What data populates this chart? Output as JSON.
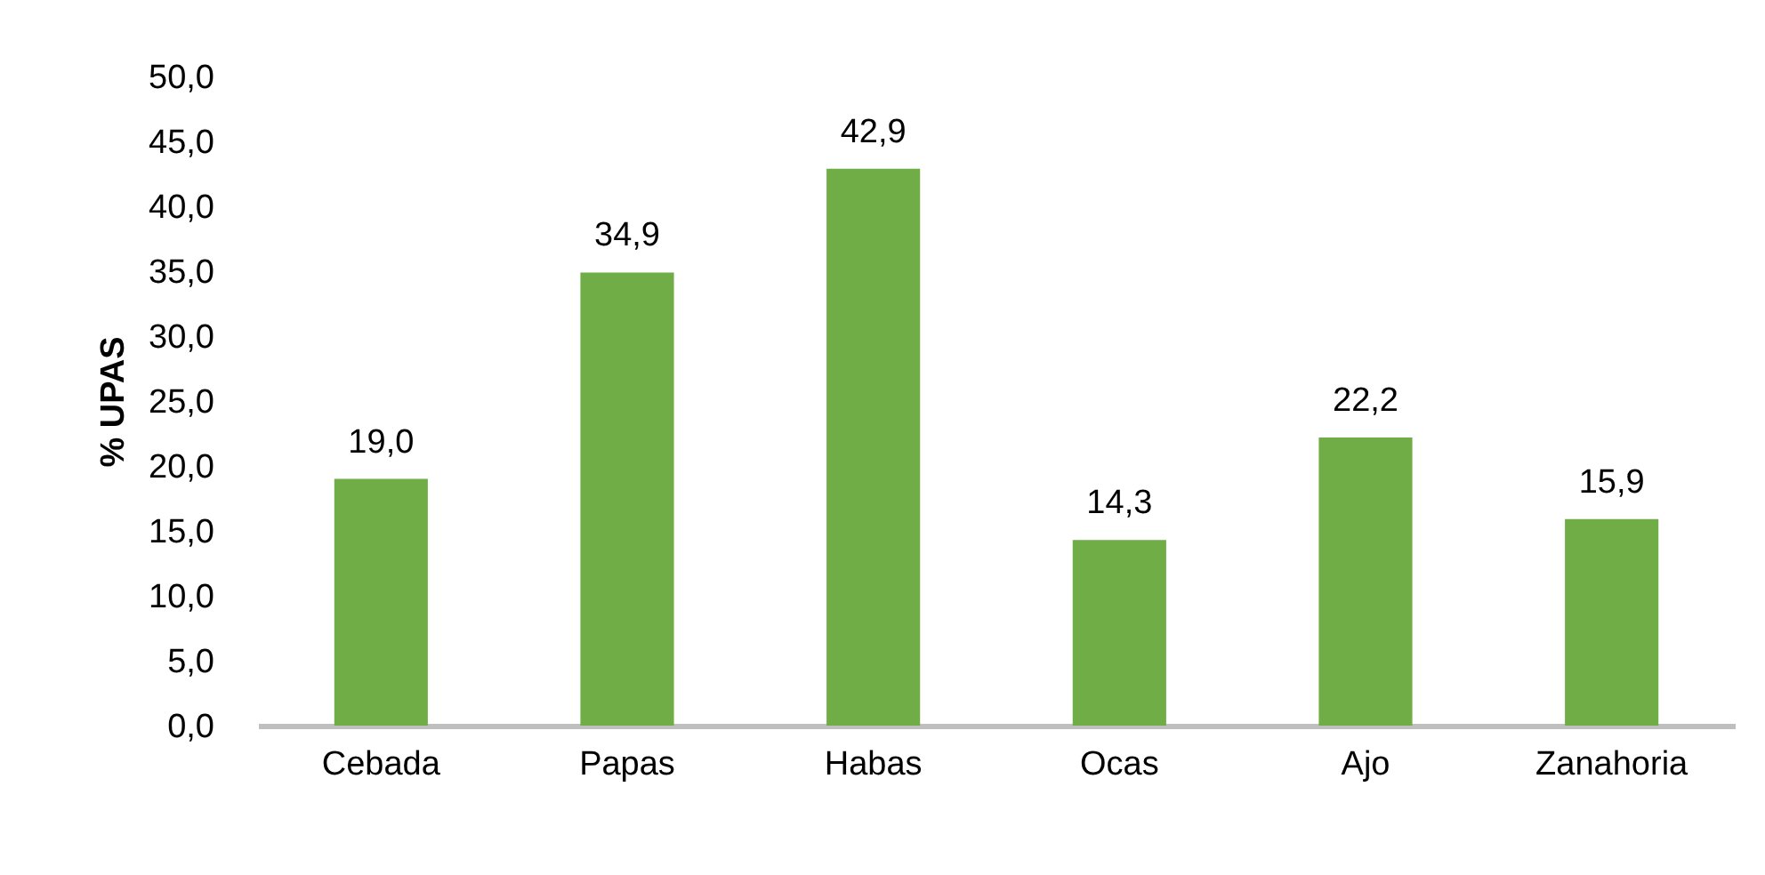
{
  "chart_data": {
    "type": "bar",
    "ylabel": "% UPAS",
    "categories": [
      "Cebada",
      "Papas",
      "Habas",
      "Ocas",
      "Ajo",
      "Zanahoria"
    ],
    "values": [
      19.0,
      34.9,
      42.9,
      14.3,
      22.2,
      15.9
    ],
    "value_labels": [
      "19,0",
      "34,9",
      "42,9",
      "14,3",
      "22,2",
      "15,9"
    ],
    "color": "#70ad47",
    "ylim": [
      0,
      50
    ],
    "yticks": [
      {
        "value": 0,
        "label": "0,0"
      },
      {
        "value": 5,
        "label": "5,0"
      },
      {
        "value": 10,
        "label": "10,0"
      },
      {
        "value": 15,
        "label": "15,0"
      },
      {
        "value": 20,
        "label": "20,0"
      },
      {
        "value": 25,
        "label": "25,0"
      },
      {
        "value": 30,
        "label": "30,0"
      },
      {
        "value": 35,
        "label": "35,0"
      },
      {
        "value": 40,
        "label": "40,0"
      },
      {
        "value": 45,
        "label": "45,0"
      },
      {
        "value": 50,
        "label": "50,0"
      }
    ],
    "grid": false
  }
}
